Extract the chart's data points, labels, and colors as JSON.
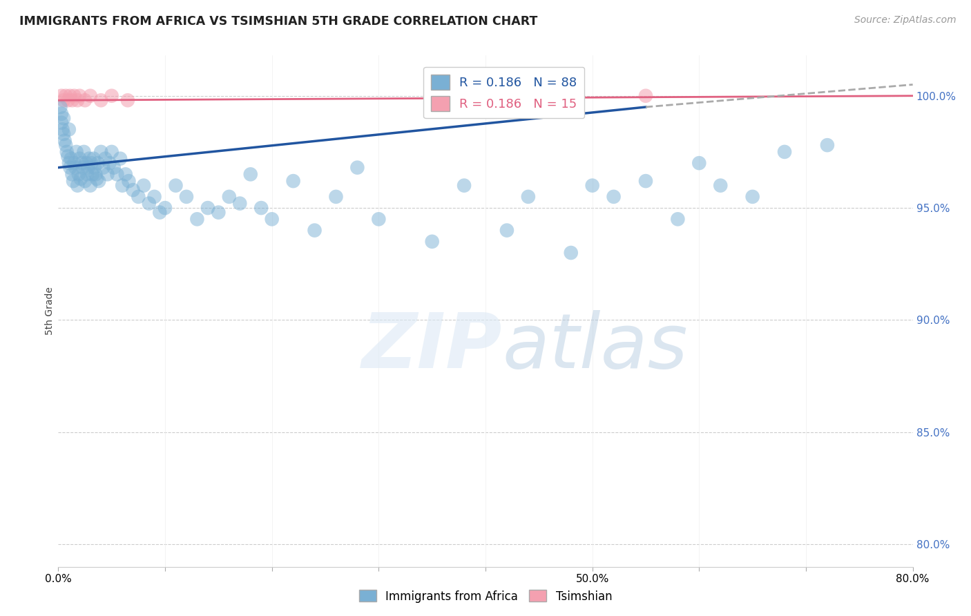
{
  "title": "IMMIGRANTS FROM AFRICA VS TSIMSHIAN 5TH GRADE CORRELATION CHART",
  "source": "Source: ZipAtlas.com",
  "ylabel": "5th Grade",
  "right_yticks": [
    100.0,
    95.0,
    90.0,
    85.0,
    80.0
  ],
  "right_ytick_labels": [
    "100.0%",
    "95.0%",
    "90.0%",
    "85.0%",
    "80.0%"
  ],
  "xmin": 0.0,
  "xmax": 80.0,
  "ymin": 79.0,
  "ymax": 101.8,
  "blue_R": 0.186,
  "blue_N": 88,
  "pink_R": 0.186,
  "pink_N": 15,
  "blue_color": "#7ab0d4",
  "pink_color": "#f4a0b0",
  "blue_line_color": "#2155a0",
  "pink_line_color": "#e06080",
  "legend_blue_label": "Immigrants from Africa",
  "legend_pink_label": "Tsimshian",
  "blue_scatter_x": [
    0.2,
    0.3,
    0.3,
    0.4,
    0.5,
    0.5,
    0.6,
    0.7,
    0.8,
    0.9,
    1.0,
    1.0,
    1.1,
    1.2,
    1.3,
    1.4,
    1.5,
    1.6,
    1.7,
    1.8,
    1.9,
    2.0,
    2.1,
    2.2,
    2.3,
    2.4,
    2.5,
    2.6,
    2.7,
    2.8,
    2.9,
    3.0,
    3.1,
    3.2,
    3.3,
    3.4,
    3.5,
    3.6,
    3.7,
    3.8,
    4.0,
    4.2,
    4.4,
    4.6,
    4.8,
    5.0,
    5.2,
    5.5,
    5.8,
    6.0,
    6.3,
    6.6,
    7.0,
    7.5,
    8.0,
    8.5,
    9.0,
    9.5,
    10.0,
    11.0,
    12.0,
    13.0,
    14.0,
    15.0,
    16.0,
    17.0,
    18.0,
    19.0,
    20.0,
    22.0,
    24.0,
    26.0,
    28.0,
    30.0,
    35.0,
    38.0,
    42.0,
    44.0,
    48.0,
    50.0,
    52.0,
    55.0,
    58.0,
    60.0,
    62.0,
    65.0,
    68.0,
    72.0
  ],
  "blue_scatter_y": [
    99.5,
    99.2,
    98.8,
    98.5,
    98.3,
    99.0,
    98.0,
    97.8,
    97.5,
    97.3,
    97.0,
    98.5,
    96.8,
    97.2,
    96.5,
    96.2,
    97.0,
    96.8,
    97.5,
    96.0,
    96.5,
    97.2,
    96.3,
    97.0,
    96.8,
    97.5,
    96.2,
    97.0,
    96.5,
    96.8,
    97.2,
    96.0,
    97.0,
    96.5,
    97.2,
    96.8,
    96.5,
    96.3,
    97.0,
    96.2,
    97.5,
    96.8,
    97.2,
    96.5,
    97.0,
    97.5,
    96.8,
    96.5,
    97.2,
    96.0,
    96.5,
    96.2,
    95.8,
    95.5,
    96.0,
    95.2,
    95.5,
    94.8,
    95.0,
    96.0,
    95.5,
    94.5,
    95.0,
    94.8,
    95.5,
    95.2,
    96.5,
    95.0,
    94.5,
    96.2,
    94.0,
    95.5,
    96.8,
    94.5,
    93.5,
    96.0,
    94.0,
    95.5,
    93.0,
    96.0,
    95.5,
    96.2,
    94.5,
    97.0,
    96.0,
    95.5,
    97.5,
    97.8
  ],
  "pink_scatter_x": [
    0.3,
    0.5,
    0.7,
    0.9,
    1.1,
    1.3,
    1.5,
    1.8,
    2.0,
    2.5,
    3.0,
    4.0,
    5.0,
    6.5,
    55.0
  ],
  "pink_scatter_y": [
    100.0,
    99.8,
    100.0,
    99.8,
    100.0,
    99.8,
    100.0,
    99.8,
    100.0,
    99.8,
    100.0,
    99.8,
    100.0,
    99.8,
    100.0
  ],
  "blue_trend_x0": 0.0,
  "blue_trend_y0": 96.8,
  "blue_trend_x1": 55.0,
  "blue_trend_y1": 99.5,
  "blue_dashed_x0": 55.0,
  "blue_dashed_x1": 80.0,
  "blue_dashed_y0": 99.5,
  "blue_dashed_y1": 100.5,
  "pink_trend_x0": 0.0,
  "pink_trend_y0": 99.8,
  "pink_trend_x1": 80.0,
  "pink_trend_y1": 100.0,
  "xtick_positions": [
    0.0,
    10.0,
    20.0,
    30.0,
    40.0,
    50.0,
    60.0,
    70.0,
    80.0
  ],
  "xtick_show_labels": [
    true,
    false,
    false,
    false,
    false,
    true,
    false,
    false,
    true
  ]
}
